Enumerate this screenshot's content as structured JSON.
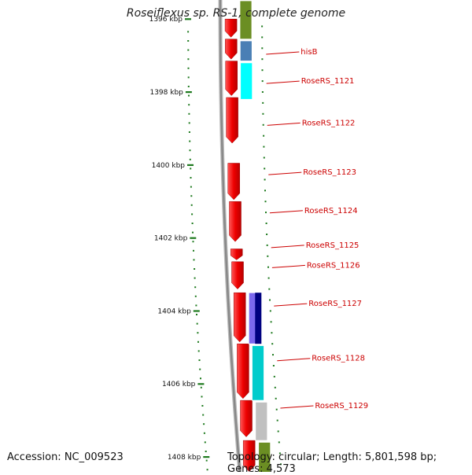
{
  "title": "Roseiflexus sp. RS-1, complete genome",
  "footer": {
    "accession": "Accession: NC_009523",
    "summary": "Topology: circular; Length: 5,801,598 bp; Genes: 4,573"
  },
  "colors": {
    "backbone": "#888888",
    "tick": "#1e7a1e",
    "cds": "#ee0000",
    "rna": "#6b8e23",
    "label_text": "#cc0000"
  },
  "scale": {
    "tick_labels": [
      {
        "kbp": 1396,
        "text": "1396 kbp"
      },
      {
        "kbp": 1398,
        "text": "1398 kbp"
      },
      {
        "kbp": 1400,
        "text": "1400 kbp"
      },
      {
        "kbp": 1402,
        "text": "1402 kbp"
      },
      {
        "kbp": 1404,
        "text": "1404 kbp"
      },
      {
        "kbp": 1406,
        "text": "1406 kbp"
      },
      {
        "kbp": 1408,
        "text": "1408 kbp"
      }
    ]
  },
  "cds_blocks": [
    {
      "start": 1396.0,
      "end": 1396.5
    },
    {
      "start": 1396.55,
      "end": 1397.1
    },
    {
      "start": 1397.15,
      "end": 1398.1
    },
    {
      "start": 1398.15,
      "end": 1399.4
    },
    {
      "start": 1399.95,
      "end": 1400.95
    },
    {
      "start": 1401.0,
      "end": 1402.1
    },
    {
      "start": 1402.3,
      "end": 1402.6
    },
    {
      "start": 1402.65,
      "end": 1403.4
    },
    {
      "start": 1403.5,
      "end": 1404.85
    },
    {
      "start": 1404.9,
      "end": 1406.4
    },
    {
      "start": 1406.45,
      "end": 1407.45
    },
    {
      "start": 1407.55,
      "end": 1408.4
    }
  ],
  "feature_track": [
    {
      "start": 1395.5,
      "end": 1396.55,
      "color": "#6b8e23"
    },
    {
      "start": 1396.6,
      "end": 1397.15,
      "color": "#4a7fb5"
    },
    {
      "start": 1397.2,
      "end": 1398.2,
      "color": "#00ffff"
    },
    {
      "start": 1403.5,
      "end": 1404.9,
      "color": "#7b68ee"
    },
    {
      "start": 1404.95,
      "end": 1406.45,
      "color": "#00cccc"
    },
    {
      "start": 1406.5,
      "end": 1407.55,
      "color": "#c0c0c0"
    },
    {
      "start": 1407.6,
      "end": 1408.6,
      "color": "#6b8e23"
    }
  ],
  "inner_feature_track": [
    {
      "start": 1403.5,
      "end": 1404.9,
      "color": "#000080"
    }
  ],
  "gene_labels": [
    {
      "text": "hisB",
      "kbp": 1396.9
    },
    {
      "text": "RoseRS_1121",
      "kbp": 1397.7
    },
    {
      "text": "RoseRS_1122",
      "kbp": 1398.85
    },
    {
      "text": "RoseRS_1123",
      "kbp": 1400.2
    },
    {
      "text": "RoseRS_1124",
      "kbp": 1401.25
    },
    {
      "text": "RoseRS_1125",
      "kbp": 1402.2
    },
    {
      "text": "RoseRS_1126",
      "kbp": 1402.75
    },
    {
      "text": "RoseRS_1127",
      "kbp": 1403.8
    },
    {
      "text": "RoseRS_1128",
      "kbp": 1405.3
    },
    {
      "text": "RoseRS_1129",
      "kbp": 1406.6
    }
  ]
}
